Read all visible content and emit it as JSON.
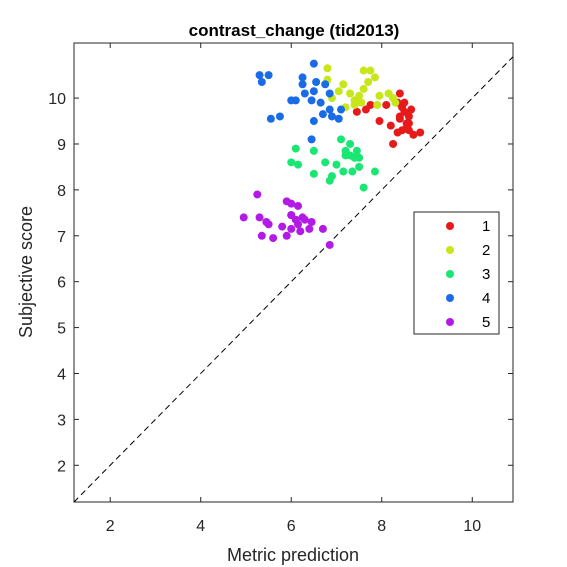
{
  "chart_data": {
    "type": "scatter",
    "title": "contrast_change (tid2013)",
    "xlabel": "Metric prediction",
    "ylabel": "Subjective score",
    "xlim": [
      1.2,
      10.9
    ],
    "ylim": [
      1.2,
      11.2
    ],
    "xticks": [
      2,
      4,
      6,
      8,
      10
    ],
    "yticks": [
      2,
      3,
      4,
      5,
      6,
      7,
      8,
      9,
      10
    ],
    "grid": false,
    "legend_position": "right",
    "reference_line": "dashed diagonal y = x",
    "series": [
      {
        "name": "1",
        "color": "#e61a1a",
        "points": [
          [
            8.4,
            10.1
          ],
          [
            8.35,
            9.9
          ],
          [
            8.45,
            9.8
          ],
          [
            8.5,
            9.9
          ],
          [
            8.6,
            9.6
          ],
          [
            8.55,
            9.45
          ],
          [
            8.6,
            9.3
          ],
          [
            8.7,
            9.2
          ],
          [
            8.85,
            9.25
          ],
          [
            8.45,
            9.3
          ],
          [
            8.35,
            9.25
          ],
          [
            8.5,
            9.7
          ],
          [
            8.4,
            9.55
          ],
          [
            8.2,
            9.4
          ],
          [
            8.25,
            9.0
          ],
          [
            7.95,
            9.5
          ],
          [
            8.1,
            9.85
          ],
          [
            7.65,
            9.75
          ],
          [
            7.45,
            9.7
          ],
          [
            7.75,
            9.85
          ],
          [
            8.6,
            9.45
          ],
          [
            8.55,
            9.35
          ],
          [
            8.65,
            9.75
          ],
          [
            8.4,
            9.6
          ]
        ]
      },
      {
        "name": "2",
        "color": "#c8e61a",
        "points": [
          [
            6.8,
            10.65
          ],
          [
            7.6,
            10.6
          ],
          [
            7.75,
            10.6
          ],
          [
            7.85,
            10.45
          ],
          [
            7.7,
            10.35
          ],
          [
            7.6,
            10.2
          ],
          [
            7.5,
            10.05
          ],
          [
            7.15,
            10.3
          ],
          [
            7.3,
            10.1
          ],
          [
            7.05,
            10.15
          ],
          [
            6.9,
            10.0
          ],
          [
            7.4,
            9.95
          ],
          [
            7.95,
            10.05
          ],
          [
            8.15,
            10.1
          ],
          [
            8.25,
            10.0
          ],
          [
            8.3,
            9.9
          ],
          [
            7.9,
            9.85
          ],
          [
            7.55,
            9.9
          ],
          [
            7.4,
            9.85
          ],
          [
            7.2,
            9.8
          ],
          [
            6.8,
            10.4
          ]
        ]
      },
      {
        "name": "3",
        "color": "#1ae673",
        "points": [
          [
            7.1,
            9.1
          ],
          [
            7.3,
            9.0
          ],
          [
            7.2,
            8.85
          ],
          [
            7.3,
            8.75
          ],
          [
            7.4,
            8.7
          ],
          [
            7.5,
            8.5
          ],
          [
            7.35,
            8.4
          ],
          [
            7.15,
            8.4
          ],
          [
            7.0,
            8.55
          ],
          [
            6.85,
            8.2
          ],
          [
            6.9,
            8.3
          ],
          [
            7.6,
            8.05
          ],
          [
            7.85,
            8.4
          ],
          [
            7.45,
            8.85
          ],
          [
            6.5,
            8.85
          ],
          [
            6.0,
            8.6
          ],
          [
            6.15,
            8.55
          ],
          [
            6.5,
            8.35
          ],
          [
            6.75,
            8.6
          ],
          [
            6.1,
            8.9
          ],
          [
            7.5,
            8.7
          ],
          [
            7.2,
            8.75
          ]
        ]
      },
      {
        "name": "4",
        "color": "#1a6be6",
        "points": [
          [
            5.3,
            10.5
          ],
          [
            5.5,
            10.5
          ],
          [
            5.35,
            10.35
          ],
          [
            6.5,
            10.75
          ],
          [
            6.25,
            10.45
          ],
          [
            6.55,
            10.35
          ],
          [
            6.25,
            10.3
          ],
          [
            6.75,
            10.3
          ],
          [
            6.3,
            10.1
          ],
          [
            6.5,
            10.15
          ],
          [
            6.85,
            10.1
          ],
          [
            6.1,
            9.95
          ],
          [
            6.45,
            9.95
          ],
          [
            6.0,
            9.95
          ],
          [
            6.65,
            9.9
          ],
          [
            6.85,
            9.75
          ],
          [
            7.1,
            9.75
          ],
          [
            6.7,
            9.65
          ],
          [
            6.9,
            9.6
          ],
          [
            7.05,
            9.55
          ],
          [
            6.5,
            9.5
          ],
          [
            5.75,
            9.6
          ],
          [
            5.55,
            9.55
          ],
          [
            6.45,
            9.1
          ]
        ]
      },
      {
        "name": "5",
        "color": "#b31ae6",
        "points": [
          [
            5.25,
            7.9
          ],
          [
            5.9,
            7.75
          ],
          [
            6.0,
            7.7
          ],
          [
            6.15,
            7.65
          ],
          [
            6.0,
            7.45
          ],
          [
            6.1,
            7.35
          ],
          [
            6.25,
            7.4
          ],
          [
            6.15,
            7.25
          ],
          [
            6.3,
            7.35
          ],
          [
            6.45,
            7.3
          ],
          [
            6.4,
            7.15
          ],
          [
            6.2,
            7.1
          ],
          [
            6.7,
            7.15
          ],
          [
            6.0,
            7.15
          ],
          [
            5.8,
            7.2
          ],
          [
            5.5,
            7.25
          ],
          [
            5.45,
            7.3
          ],
          [
            5.9,
            7.0
          ],
          [
            5.6,
            6.95
          ],
          [
            5.35,
            7.0
          ],
          [
            5.3,
            7.4
          ],
          [
            4.95,
            7.4
          ],
          [
            6.85,
            6.8
          ],
          [
            6.0,
            7.45
          ]
        ]
      }
    ]
  }
}
